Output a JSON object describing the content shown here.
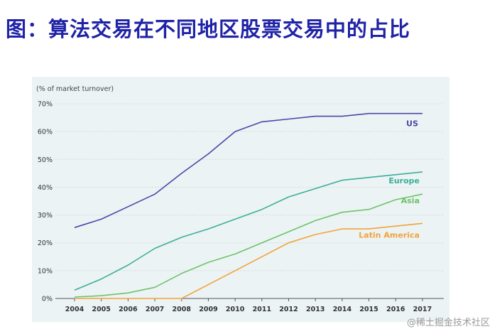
{
  "title": "图：算法交易在不同地区股票交易中的占比",
  "watermark": "@稀土掘金技术社区",
  "chart_data": {
    "type": "line",
    "ylabel": "(% of market turnover)",
    "xlabel": "",
    "x": [
      "2004",
      "2005",
      "2006",
      "2007",
      "2008",
      "2009",
      "2010",
      "2011",
      "2012",
      "2013",
      "2014",
      "2015",
      "2016",
      "2017"
    ],
    "ylim": [
      0,
      70
    ],
    "yticks": [
      0,
      10,
      20,
      30,
      40,
      50,
      60,
      70
    ],
    "ytick_labels": [
      "0%",
      "10%",
      "20%",
      "30%",
      "40%",
      "50%",
      "60%",
      "70%"
    ],
    "grid": "horizontal",
    "series": [
      {
        "name": "US",
        "color": "#4a48a8",
        "values": [
          25.5,
          28.5,
          33,
          37.5,
          45,
          52,
          60,
          63.5,
          64.5,
          65.5,
          65.5,
          66.5,
          66.5,
          66.5
        ]
      },
      {
        "name": "Europe",
        "color": "#3aaf9a",
        "values": [
          3,
          7,
          12,
          18,
          22,
          25,
          28.5,
          32,
          36.5,
          39.5,
          42.5,
          43.5,
          44.5,
          45.5
        ]
      },
      {
        "name": "Asia",
        "color": "#6cc36a",
        "values": [
          0.5,
          1,
          2,
          4,
          9,
          13,
          16,
          20,
          24,
          28,
          31,
          32,
          35.5,
          37.5
        ]
      },
      {
        "name": "Latin America",
        "color": "#f2a33a",
        "values": [
          0,
          0,
          0,
          0,
          0,
          5,
          10,
          15,
          20,
          23,
          25,
          25,
          26,
          27
        ]
      }
    ]
  }
}
